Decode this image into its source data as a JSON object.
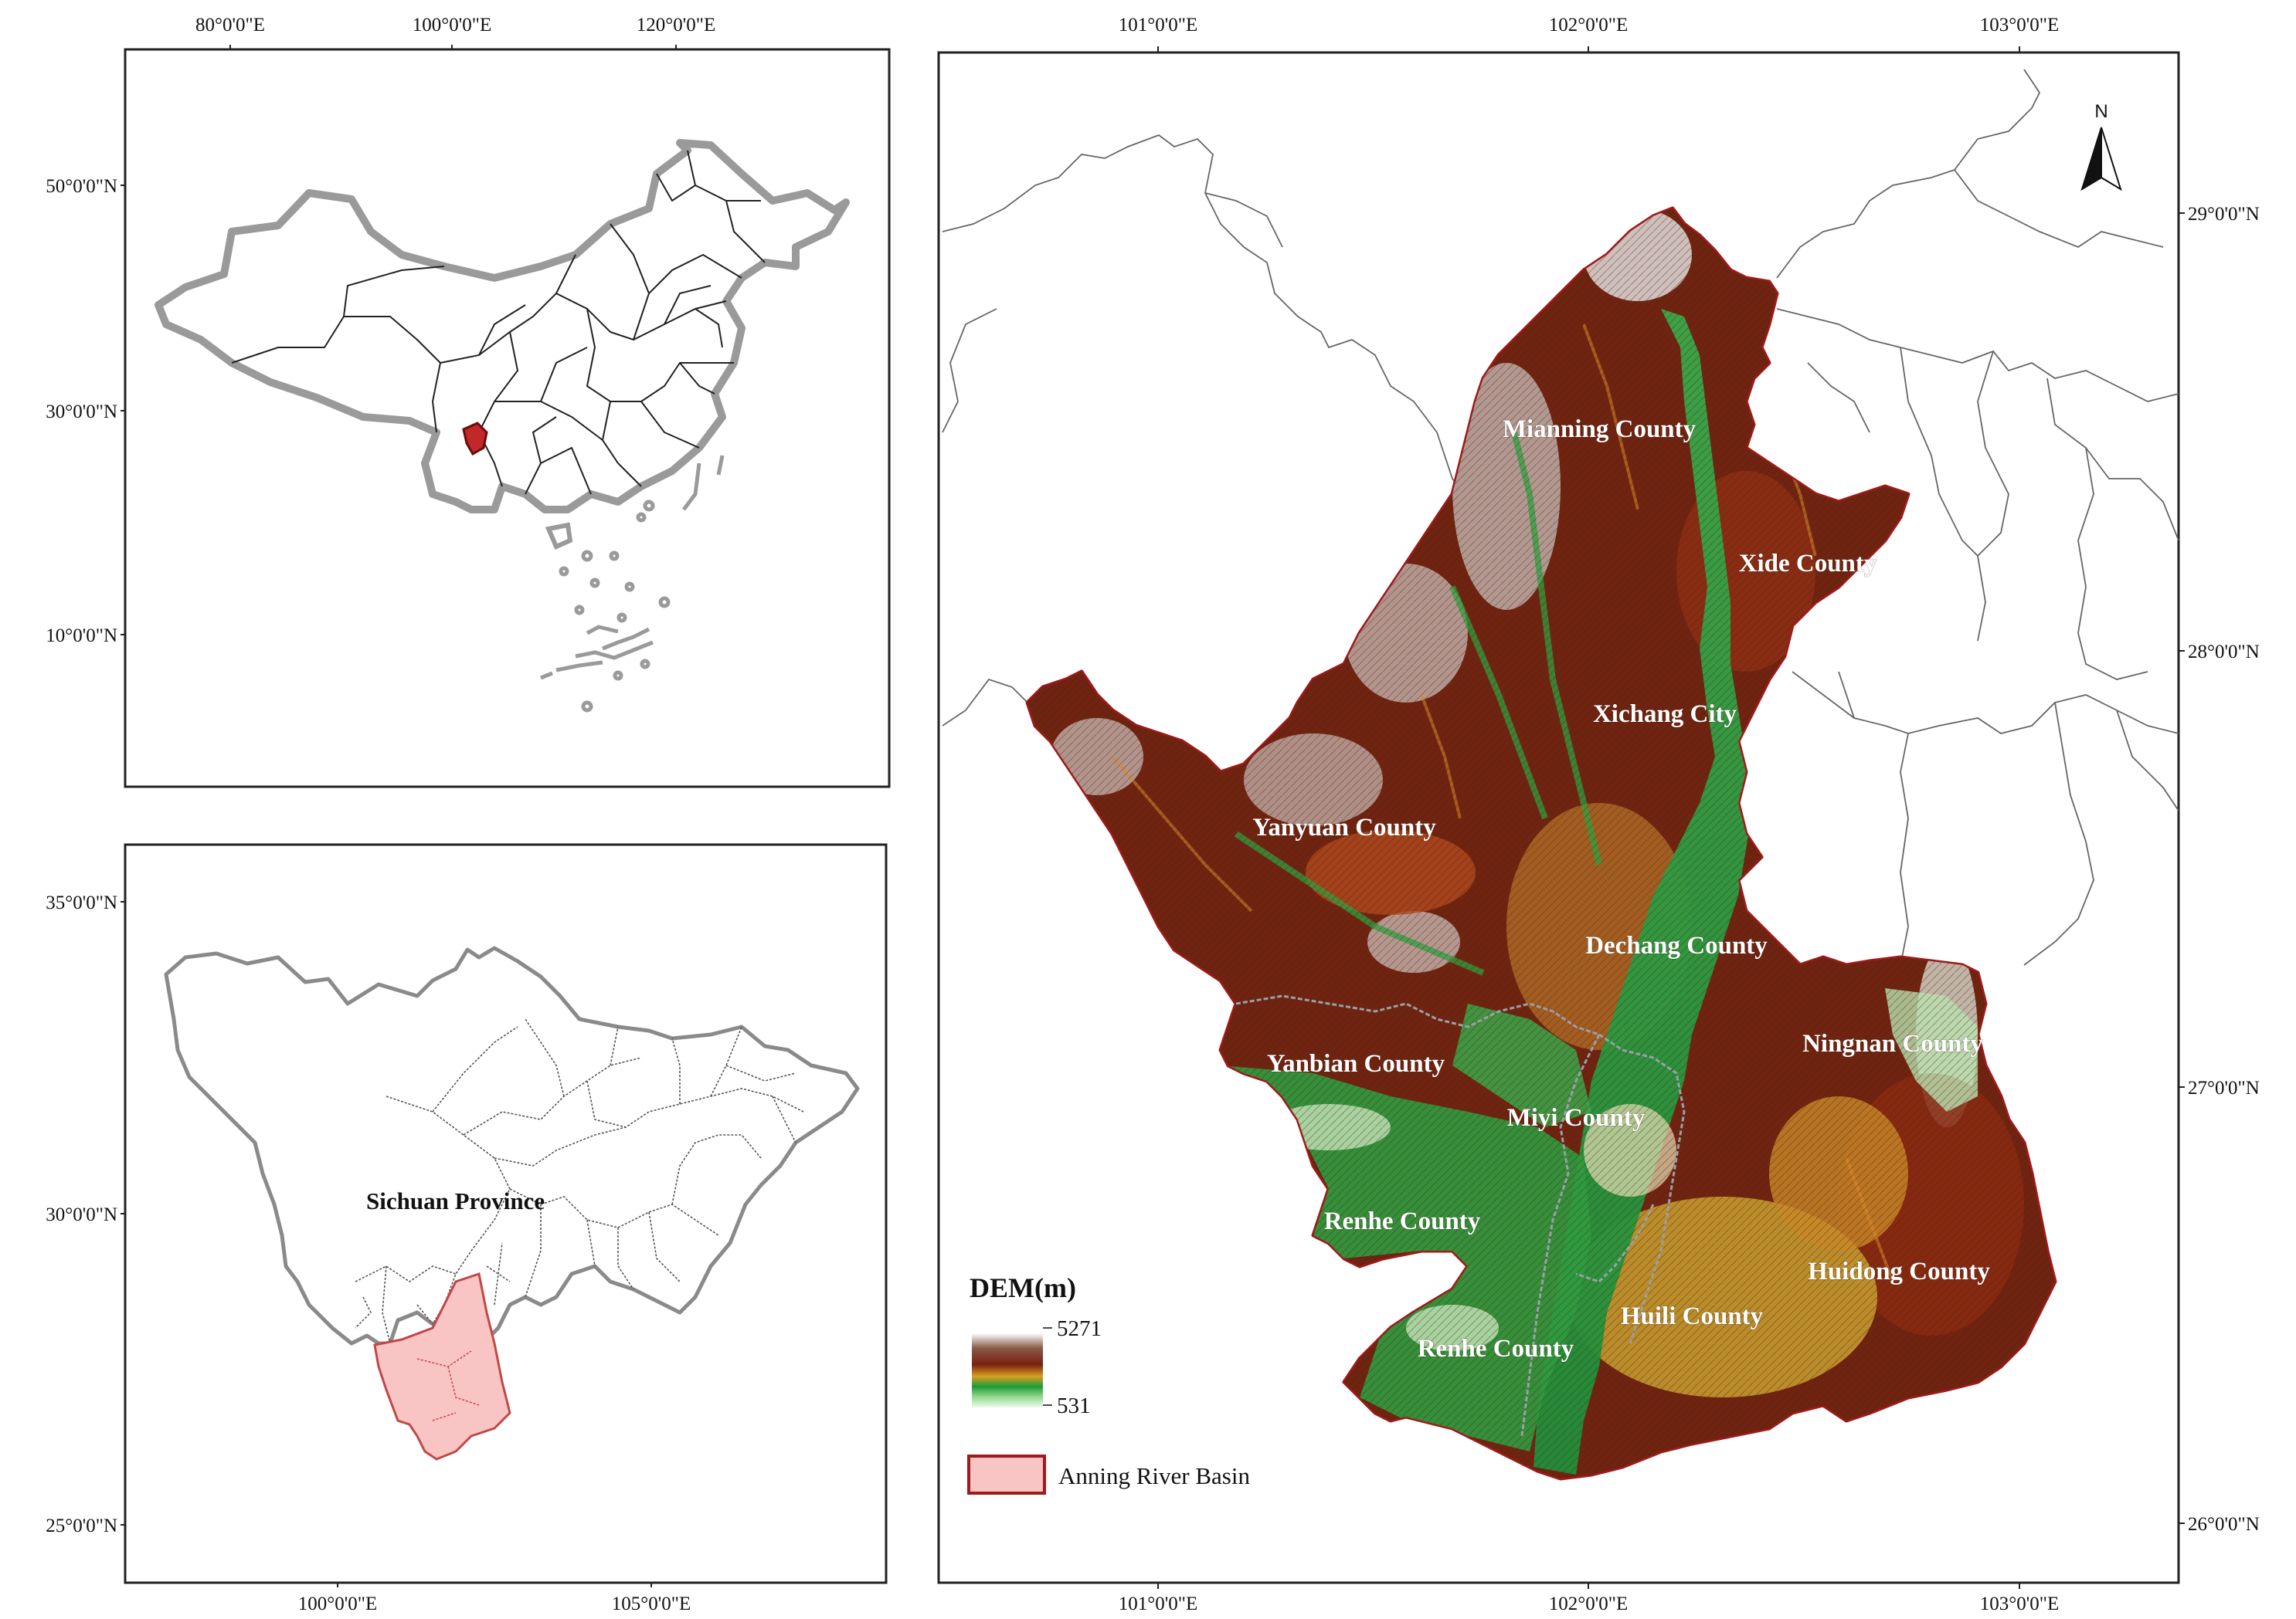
{
  "china_inset": {
    "lon_ticks": [
      "80°0'0\"E",
      "100°0'0\"E",
      "120°0'0\"E"
    ],
    "lat_ticks": [
      "50°0'0\"N",
      "30°0'0\"N",
      "10°0'0\"N"
    ]
  },
  "sichuan_inset": {
    "province_label": "Sichuan Province",
    "lon_ticks": [
      "100°0'0\"E",
      "105°0'0\"E"
    ],
    "lat_ticks": [
      "35°0'0\"N",
      "30°0'0\"N",
      "25°0'0\"N"
    ]
  },
  "main_map": {
    "lon_ticks_top": [
      "101°0'0\"E",
      "102°0'0\"E",
      "103°0'0\"E"
    ],
    "lon_ticks_bottom": [
      "101°0'0\"E",
      "102°0'0\"E",
      "103°0'0\"E"
    ],
    "lat_ticks": [
      "29°0'0\"N",
      "28°0'0\"N",
      "27°0'0\"N",
      "26°0'0\"N"
    ],
    "north_arrow_label": "N",
    "county_labels": [
      "Mianning County",
      "Xide County",
      "Xichang City",
      "Yanyuan County",
      "Dechang County",
      "Yanbian County",
      "Ningnan County",
      "Miyi County",
      "Renhe County",
      "Huidong County",
      "Huili County",
      "Renhe County"
    ]
  },
  "legend": {
    "dem_title": "DEM(m)",
    "dem_max": "5271",
    "dem_min": "531",
    "basin_label": "Anning River Basin"
  },
  "colors": {
    "basin_fill": "#f9c4c4",
    "basin_outline": "#a01a1a",
    "country_outline": "#9a9a9a",
    "dem_high": "#ffffff",
    "dem_mid_high": "#7a1f10",
    "dem_mid": "#d8a020",
    "dem_low": "#1e9a3a",
    "dem_lowest": "#e8fbe8"
  }
}
